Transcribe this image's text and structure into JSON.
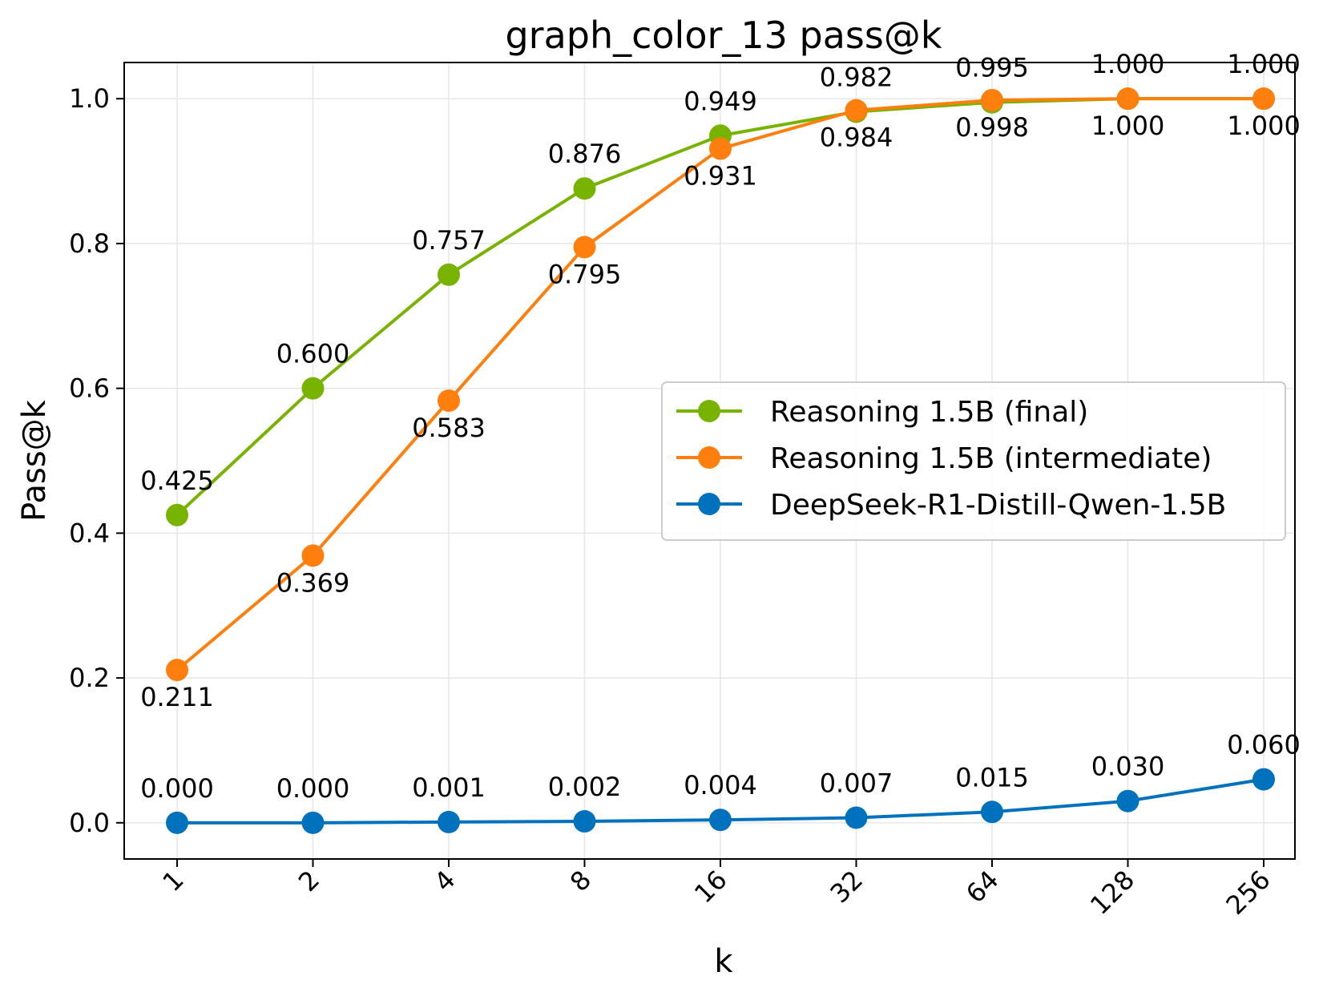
{
  "chart_data": {
    "type": "line",
    "title": "graph_color_13 pass@k",
    "xlabel": "k",
    "ylabel": "Pass@k",
    "categories": [
      "1",
      "2",
      "4",
      "8",
      "16",
      "32",
      "64",
      "128",
      "256"
    ],
    "ylim": [
      -0.05,
      1.05
    ],
    "yticks": [
      "0.0",
      "0.2",
      "0.4",
      "0.6",
      "0.8",
      "1.0"
    ],
    "grid": true,
    "legend_position": "center-right",
    "series": [
      {
        "name": "Reasoning 1.5B (final)",
        "color": "#77b300",
        "values": [
          0.425,
          0.6,
          0.757,
          0.876,
          0.949,
          0.982,
          0.995,
          1.0,
          1.0
        ],
        "labels": [
          "0.425",
          "0.600",
          "0.757",
          "0.876",
          "0.949",
          "0.982",
          "0.995",
          "1.000",
          "1.000"
        ],
        "label_side": "above"
      },
      {
        "name": "Reasoning 1.5B (intermediate)",
        "color": "#ff7f0e",
        "values": [
          0.211,
          0.369,
          0.583,
          0.795,
          0.931,
          0.984,
          0.998,
          1.0,
          1.0
        ],
        "labels": [
          "0.211",
          "0.369",
          "0.583",
          "0.795",
          "0.931",
          "0.984",
          "0.998",
          "1.000",
          "1.000"
        ],
        "label_side": "below"
      },
      {
        "name": "DeepSeek-R1-Distill-Qwen-1.5B",
        "color": "#0072bd",
        "values": [
          0.0,
          0.0,
          0.001,
          0.002,
          0.004,
          0.007,
          0.015,
          0.03,
          0.06
        ],
        "labels": [
          "0.000",
          "0.000",
          "0.001",
          "0.002",
          "0.004",
          "0.007",
          "0.015",
          "0.030",
          "0.060"
        ],
        "label_side": "above"
      }
    ]
  }
}
